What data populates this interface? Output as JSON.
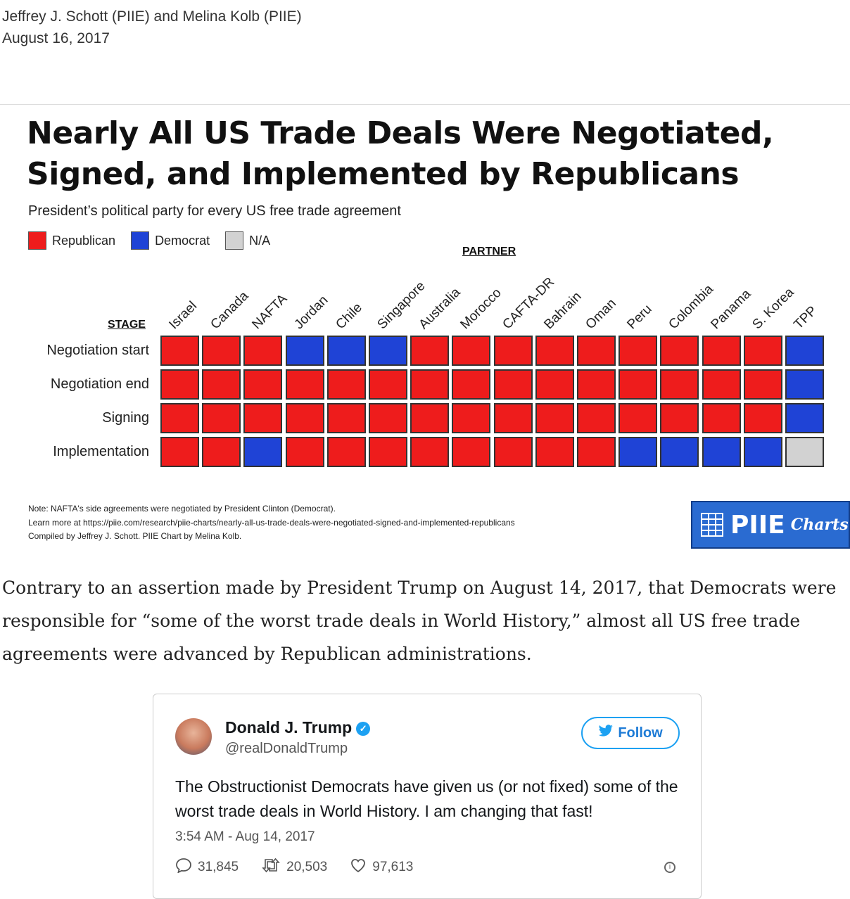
{
  "byline": {
    "authors": "Jeffrey J. Schott (PIIE) and Melina Kolb (PIIE)",
    "date": "August 16, 2017"
  },
  "chart": {
    "title_line1": "Nearly All US Trade Deals Were Negotiated,",
    "title_line2": "Signed, and Implemented by Republicans",
    "subtitle": "President’s political party for every US free trade agreement",
    "legend": [
      {
        "label": "Republican",
        "color": "#ee1c1c"
      },
      {
        "label": "Democrat",
        "color": "#1f43d6"
      },
      {
        "label": "N/A",
        "color": "#d2d2d2"
      }
    ],
    "partner_label": "PARTNER",
    "stage_label": "STAGE",
    "notes": [
      "Note: NAFTA's side agreements were negotiated by President Clinton (Democrat).",
      "Learn more at https://piie.com/research/piie-charts/nearly-all-us-trade-deals-were-negotiated-signed-and-implemented-republicans",
      "Compiled by Jeffrey J. Schott. PIIE Chart by Melina Kolb."
    ],
    "logo_main": "PIIE",
    "logo_sub": "Charts"
  },
  "chart_data": {
    "type": "heatmap",
    "title": "Nearly All US Trade Deals Were Negotiated, Signed, and Implemented by Republicans",
    "subtitle": "President’s political party for every US free trade agreement",
    "xlabel": "PARTNER",
    "ylabel": "STAGE",
    "partners": [
      "Israel",
      "Canada",
      "NAFTA",
      "Jordan",
      "Chile",
      "Singapore",
      "Australia",
      "Morocco",
      "CAFTA-DR",
      "Bahrain",
      "Oman",
      "Peru",
      "Colombia",
      "Panama",
      "S. Korea",
      "TPP"
    ],
    "stages": [
      "Negotiation start",
      "Negotiation end",
      "Signing",
      "Implementation"
    ],
    "values": [
      [
        "R",
        "R",
        "R",
        "D",
        "D",
        "D",
        "R",
        "R",
        "R",
        "R",
        "R",
        "R",
        "R",
        "R",
        "R",
        "D"
      ],
      [
        "R",
        "R",
        "R",
        "R",
        "R",
        "R",
        "R",
        "R",
        "R",
        "R",
        "R",
        "R",
        "R",
        "R",
        "R",
        "D"
      ],
      [
        "R",
        "R",
        "R",
        "R",
        "R",
        "R",
        "R",
        "R",
        "R",
        "R",
        "R",
        "R",
        "R",
        "R",
        "R",
        "D"
      ],
      [
        "R",
        "R",
        "D",
        "R",
        "R",
        "R",
        "R",
        "R",
        "R",
        "R",
        "R",
        "D",
        "D",
        "D",
        "D",
        "N"
      ]
    ],
    "categories": {
      "R": "Republican",
      "D": "Democrat",
      "N": "N/A"
    },
    "legend_position": "top-left"
  },
  "article": {
    "paragraph": "Contrary to an assertion made by President Trump on August 14, 2017, that Democrats were responsible for “some of the worst trade deals in World History,” almost all US free trade agreements were advanced by Republican administrations."
  },
  "tweet": {
    "name": "Donald J. Trump",
    "handle": "@realDonaldTrump",
    "follow_label": "Follow",
    "text": "The Obstructionist Democrats have given us (or not fixed) some of the worst trade deals in World History. I am changing that fast!",
    "time": "3:54 AM - Aug 14, 2017",
    "replies": "31,845",
    "retweets": "20,503",
    "likes": "97,613"
  }
}
